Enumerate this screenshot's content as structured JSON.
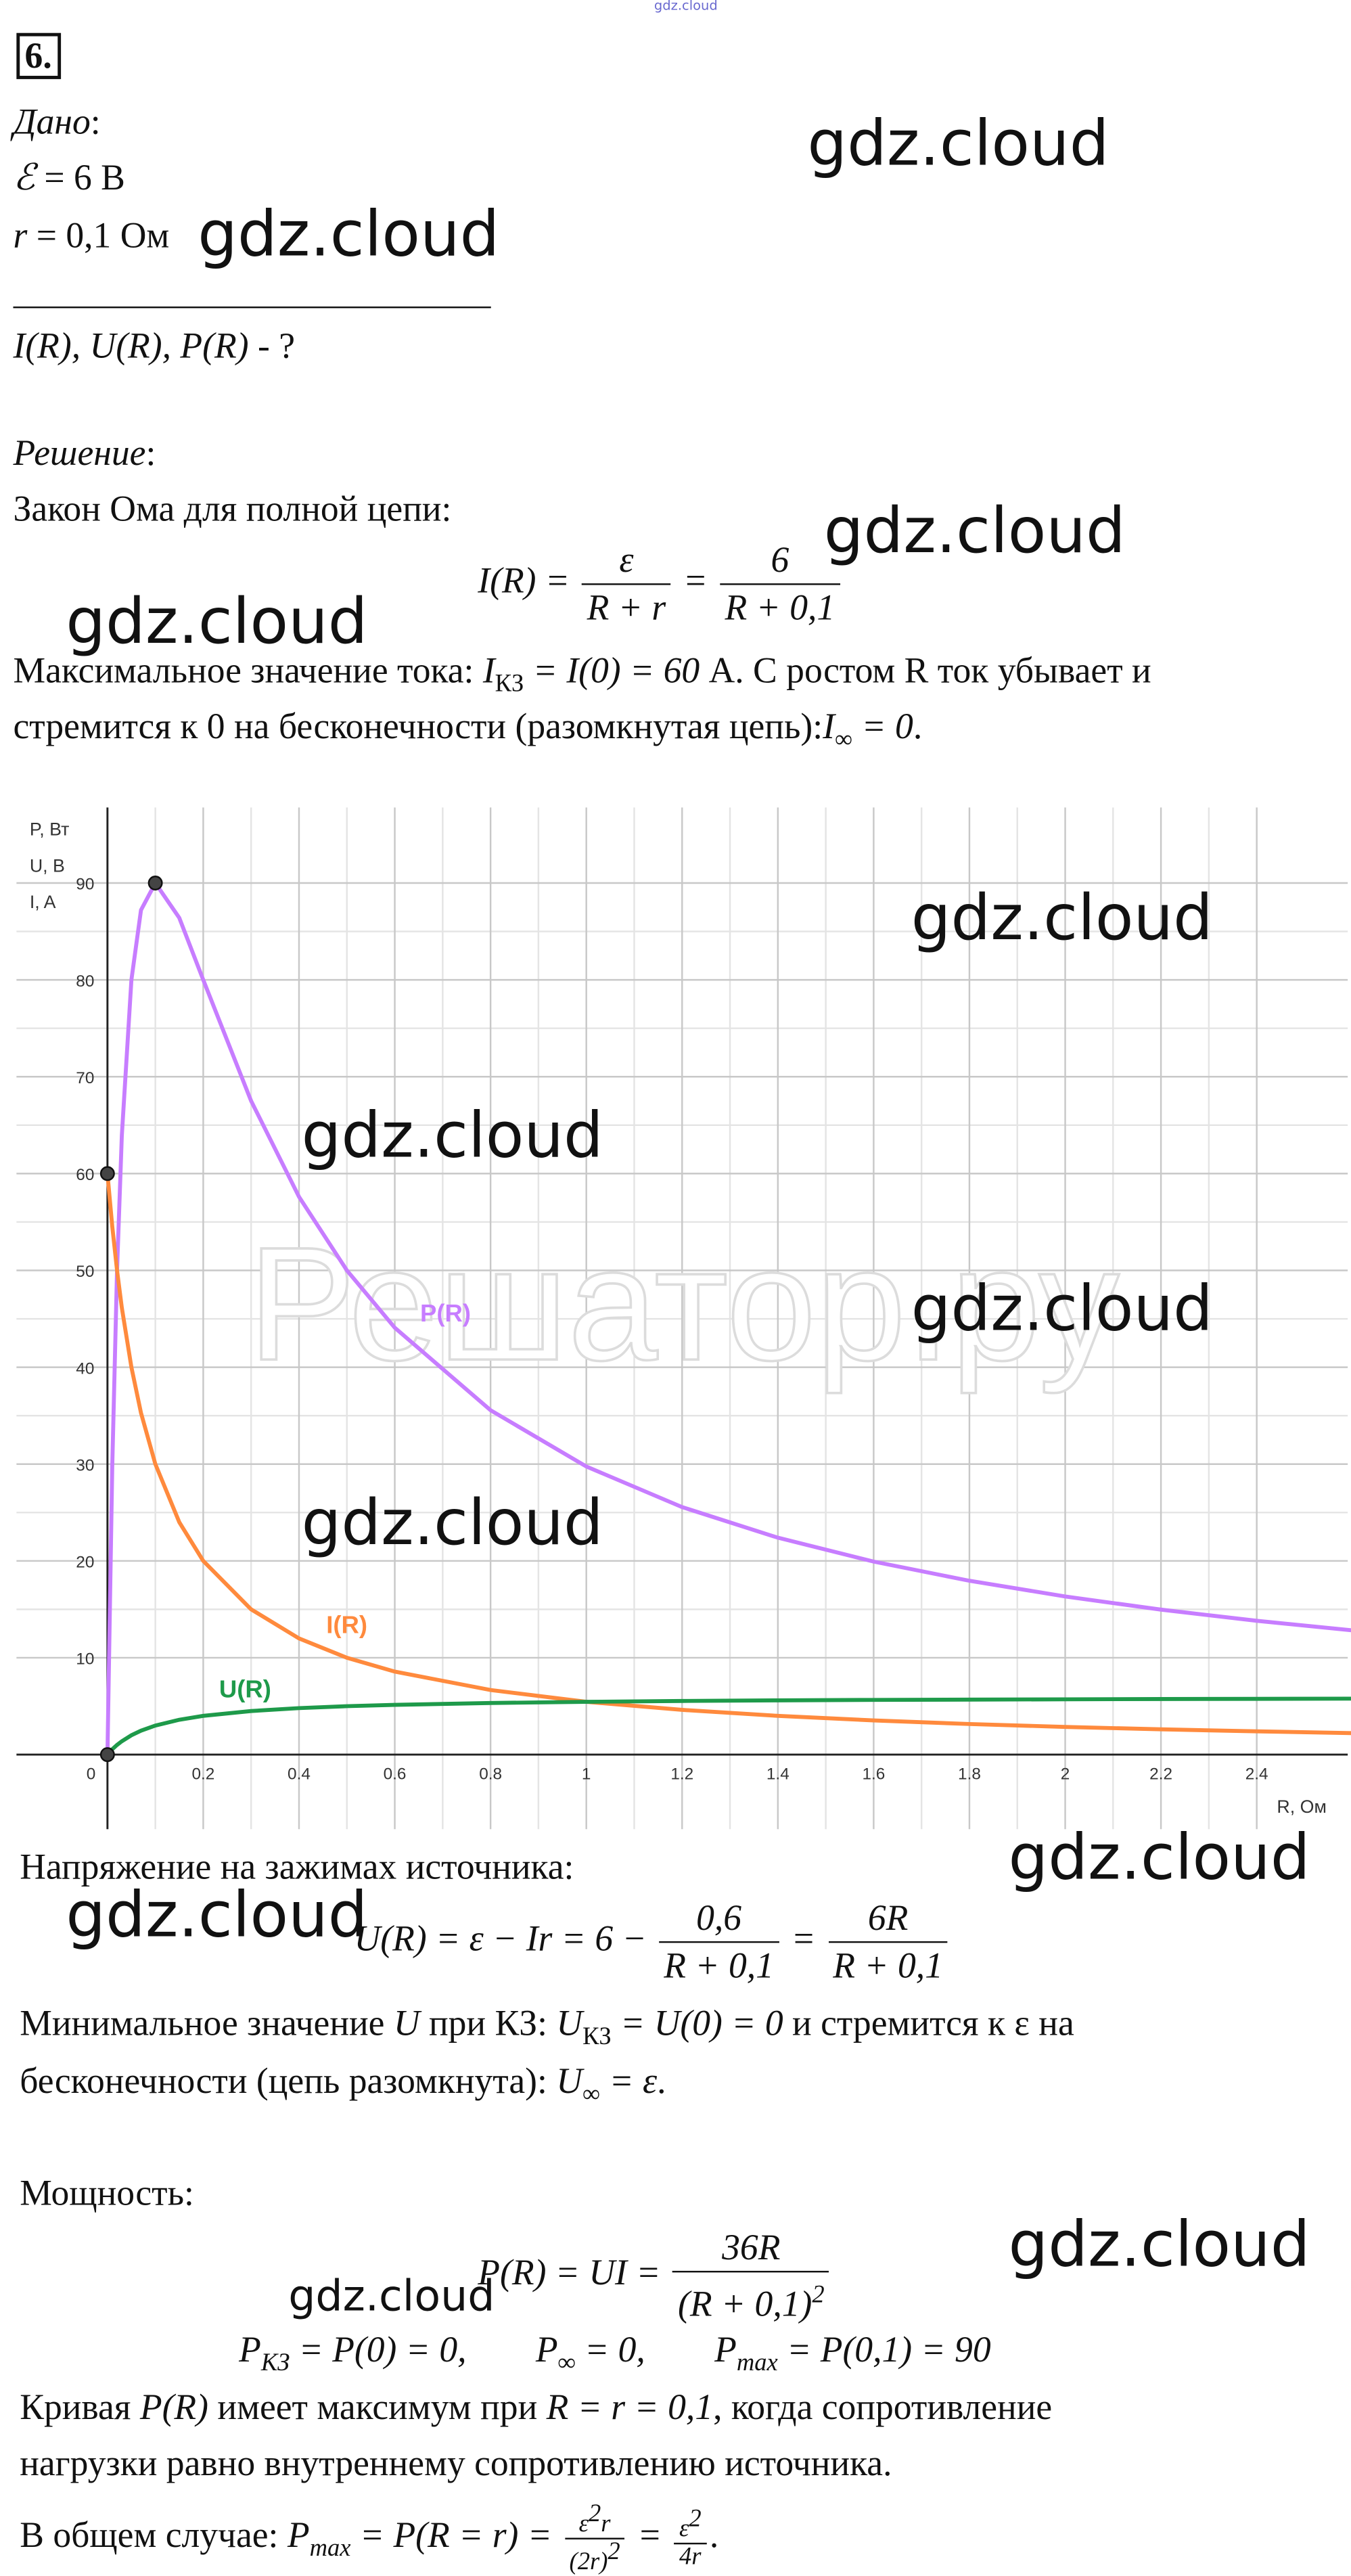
{
  "top_watermark": "gdz.cloud",
  "task_number": "6.",
  "given": {
    "label": [
      "Дано",
      ":"
    ],
    "emf": [
      "ℰ",
      " = 6 В"
    ],
    "r": [
      "r",
      " = 0,1 Ом"
    ],
    "find": [
      "I(R), U(R), P(R)",
      " - ?"
    ]
  },
  "solution": [
    "Решение",
    ":"
  ],
  "law": "Закон Ома для полной цепи:",
  "f1": [
    "I(R) = ",
    "ε",
    "R + r",
    " = ",
    "6",
    "R + 0,1"
  ],
  "p1": [
    "Максимальное значение тока: ",
    "I",
    "КЗ",
    " = I(0) = 60",
    " А. С ростом R ток убывает и"
  ],
  "p2": [
    "стремится к 0 на бесконечности (разомкнутая цепь):",
    "I",
    "∞",
    " = 0",
    "."
  ],
  "chart_data": {
    "type": "line",
    "x": [
      0,
      0.01,
      0.02,
      0.03,
      0.05,
      0.07,
      0.1,
      0.15,
      0.2,
      0.3,
      0.4,
      0.5,
      0.6,
      0.8,
      1,
      1.2,
      1.4,
      1.6,
      1.8,
      2,
      2.2,
      2.4,
      2.6
    ],
    "series": [
      {
        "name": "P(R)",
        "color": "#c77dff",
        "values": [
          0,
          29.75,
          50,
          63.91,
          80,
          87.2,
          90,
          86.4,
          80,
          67.5,
          57.6,
          50,
          44.08,
          35.56,
          29.75,
          25.56,
          22.4,
          19.93,
          17.95,
          16.33,
          14.97,
          13.82,
          12.83
        ]
      },
      {
        "name": "I(R)",
        "color": "#ff8a3d",
        "values": [
          60,
          54.55,
          50,
          46.15,
          40,
          35.29,
          30,
          24,
          20,
          15,
          12,
          10,
          8.57,
          6.67,
          5.45,
          4.62,
          4,
          3.53,
          3.16,
          2.86,
          2.61,
          2.4,
          2.22
        ]
      },
      {
        "name": "U(R)",
        "color": "#1e9a4a",
        "values": [
          0,
          0.55,
          1,
          1.38,
          2,
          2.47,
          3,
          3.6,
          4,
          4.5,
          4.8,
          5,
          5.14,
          5.33,
          5.45,
          5.54,
          5.6,
          5.65,
          5.68,
          5.71,
          5.74,
          5.76,
          5.78
        ]
      }
    ],
    "xlim": [
      -0.19,
      2.59
    ],
    "ylim": [
      -7.7,
      97.8
    ],
    "xticks": [
      0,
      0.2,
      0.4,
      0.6,
      0.8,
      1,
      1.2,
      1.4,
      1.6,
      1.8,
      2,
      2.2,
      2.4
    ],
    "yticks": [
      10,
      20,
      30,
      40,
      50,
      60,
      70,
      80,
      90
    ],
    "ylabels": [
      "P, Вт",
      "U, В",
      "I, A"
    ],
    "xlabel": "R, Ом",
    "grid": true,
    "watermark": "Решатор.ру"
  },
  "voltage": "Напряжение на зажимах источника:",
  "f2": [
    "U(R) = ε − Ir = 6 − ",
    "0,6",
    "R + 0,1",
    " = ",
    "6R",
    "R + 0,1"
  ],
  "p3": [
    "Минимальное значение ",
    "U",
    " при КЗ: ",
    "U",
    "КЗ",
    " = U(0) = 0",
    " и стремится к ε на"
  ],
  "p4": [
    "бесконечности (цепь разомкнута): ",
    "U",
    "∞",
    " = ε",
    "."
  ],
  "power": "Мощность:",
  "f3": [
    "P(R) = UI = ",
    "36R",
    "(R + 0,1)",
    "2"
  ],
  "f4": [
    "P",
    "КЗ",
    " = P(0) = 0,",
    "P",
    "∞",
    " = 0,",
    "P",
    "max",
    " = P(0,1) = 90"
  ],
  "p5": [
    "Кривая ",
    "P(R)",
    " имеет максимум при ",
    "R = r = 0,1",
    ", когда сопротивление"
  ],
  "p6": "нагрузки равно внутреннему сопротивлению источника.",
  "p7": [
    "В общем случае: ",
    "P",
    "max",
    " = P(R = r) = ",
    "ε",
    "2",
    "r",
    "(2r)",
    "2",
    " = ",
    "ε",
    "2",
    "4r",
    "."
  ],
  "watermarks": [
    "gdz.cloud",
    "gdz.cloud",
    "gdz.cloud",
    "gdz.cloud",
    "gdz.cloud",
    "gdz.cloud",
    "gdz.cloud",
    "gdz.cloud",
    "gdz.cloud",
    "gdz.cloud",
    "gdz.cloud",
    "gdz.cloud"
  ]
}
